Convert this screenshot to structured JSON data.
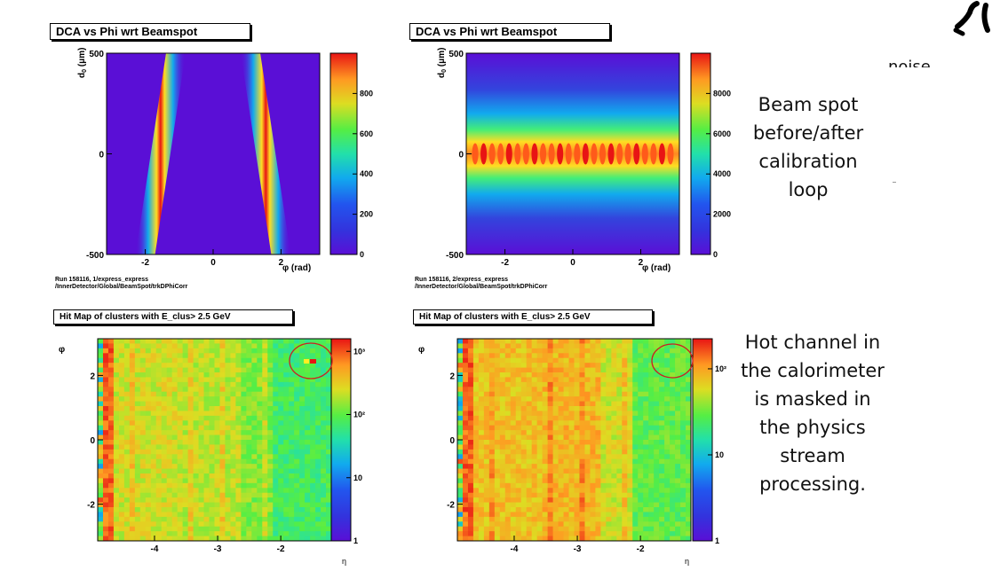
{
  "chart_data": [
    {
      "type": "heatmap",
      "title": "DCA vs Phi wrt Beamspot",
      "xlabel": "φ (rad)",
      "ylabel": "d0 (μm)",
      "xlim": [
        -3.14,
        3.14
      ],
      "ylim": [
        -500,
        500
      ],
      "x_ticks": [
        "-2",
        "0",
        "2"
      ],
      "y_ticks": [
        "500",
        "0",
        "-500"
      ],
      "z_ticks": [
        "8000",
        "6000",
        "4000",
        "2000",
        "0"
      ],
      "z_max": 10000,
      "z_scale": "linear",
      "pattern": "two diagonal sinusoidal bands (uncorrected beam spot)",
      "bands": [
        {
          "phi_at_d0_min": -2.0,
          "phi_at_d0_max": -1.1
        },
        {
          "phi_at_d0_min": 2.0,
          "phi_at_d0_max": 1.1
        }
      ],
      "footer": [
        "Run 158116, 1/express_express",
        "/InnerDetector/Global/BeamSpot/trkDPhiCorr"
      ]
    },
    {
      "type": "heatmap",
      "title": "DCA vs Phi wrt Beamspot",
      "xlabel": "φ (rad)",
      "ylabel": "d0 (μm)",
      "xlim": [
        -3.14,
        3.14
      ],
      "ylim": [
        -500,
        500
      ],
      "x_ticks": [
        "-2",
        "0",
        "2"
      ],
      "y_ticks": [
        "500",
        "0",
        "-500"
      ],
      "z_ticks": [
        "8000",
        "6000",
        "4000",
        "2000",
        "0"
      ],
      "z_max": 10000,
      "z_scale": "linear",
      "pattern": "horizontal band centred at d0 = 0 (calibrated beam spot)",
      "band_center_d0": 0,
      "footer": [
        "Run 158116, 2/express_express",
        "/InnerDetector/Global/BeamSpot/trkDPhiCorr"
      ]
    },
    {
      "type": "heatmap",
      "title": "Hit Map of clusters with  E_clus> 2.5 GeV",
      "xlabel": "η",
      "ylabel": "φ",
      "xlim": [
        -4.9,
        -1.2
      ],
      "ylim": [
        -3.14,
        3.14
      ],
      "x_ticks": [
        "-4",
        "-3",
        "-2"
      ],
      "y_ticks": [
        "2",
        "0",
        "-2"
      ],
      "z_ticks": [
        "10³",
        "10²",
        "10",
        "1"
      ],
      "z_scale": "log",
      "hot_channel": {
        "eta": -1.6,
        "phi": 2.4,
        "circled": true
      }
    },
    {
      "type": "heatmap",
      "title": "Hit Map of clusters with  E_clus> 2.5 GeV",
      "xlabel": "η",
      "ylabel": "φ",
      "xlim": [
        -4.9,
        -1.2
      ],
      "ylim": [
        -3.14,
        3.14
      ],
      "x_ticks": [
        "-4",
        "-3",
        "-2"
      ],
      "y_ticks": [
        "2",
        "0",
        "-2"
      ],
      "z_ticks": [
        "10²",
        "10",
        "1"
      ],
      "z_scale": "log",
      "hot_channel": {
        "eta": -1.6,
        "phi": 2.4,
        "circled": true,
        "masked": true
      }
    }
  ],
  "annotations": {
    "top_right": "noise",
    "beam_spot": [
      "Beam spot",
      "before/after",
      "calibration",
      "loop"
    ],
    "hot_channel": [
      "Hot channel in",
      "the calorimeter",
      "is masked in",
      "the physics",
      "stream",
      "processing."
    ]
  },
  "colors": {
    "palette_low": "#5a0fd6",
    "palette_high": "#e81414",
    "circle": "#cc2020"
  }
}
